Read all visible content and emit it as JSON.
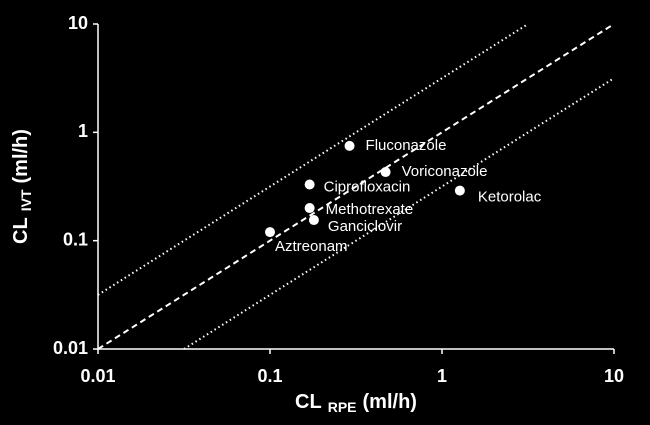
{
  "chart_data": {
    "type": "scatter",
    "xlabel": {
      "main": "CL",
      "sub": "RPE",
      "unit": "(ml/h)"
    },
    "ylabel": {
      "main": "CL",
      "sub": "IVT",
      "unit": "(ml/h)"
    },
    "log_x": true,
    "log_y": true,
    "xlim": [
      0.01,
      10
    ],
    "ylim": [
      0.01,
      10
    ],
    "xticks": [
      0.01,
      0.1,
      1,
      10
    ],
    "yticks": [
      0.01,
      0.1,
      1,
      10
    ],
    "color": "#ffffff",
    "labels": [
      "Fluconazole",
      "Voriconazole",
      "Ketorolac",
      "Ciprofloxacin",
      "Methotrexate",
      "Ganciclovir",
      "Aztreonam"
    ],
    "x": [
      0.29,
      0.47,
      1.27,
      0.17,
      0.17,
      0.18,
      0.1
    ],
    "y": [
      0.75,
      0.43,
      0.29,
      0.33,
      0.2,
      0.155,
      0.12
    ],
    "reference_lines": [
      {
        "factor": 3.16,
        "style": "dotted"
      },
      {
        "factor": 1,
        "style": "dashed"
      },
      {
        "factor": 0.316,
        "style": "dotted"
      }
    ]
  }
}
